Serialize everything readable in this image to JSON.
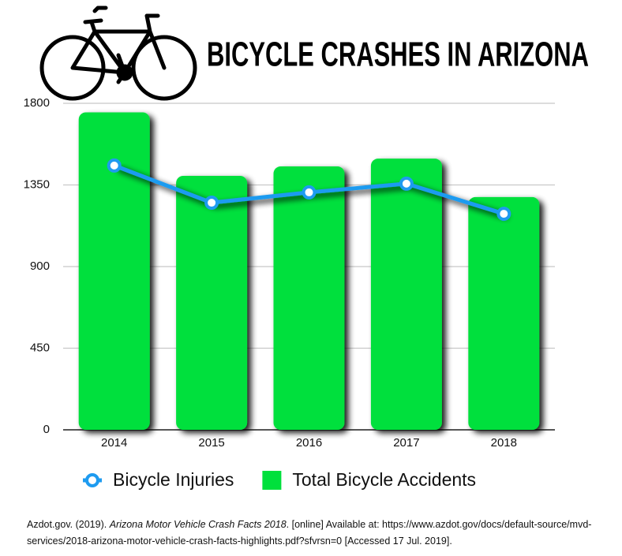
{
  "chart_data": {
    "type": "bar",
    "title": "BICYCLE CRASHES IN ARIZONA",
    "categories": [
      "2014",
      "2015",
      "2016",
      "2017",
      "2018"
    ],
    "series": [
      {
        "name": "Bicycle Injuries",
        "type": "line",
        "color": "#1e9bf0",
        "values": [
          1457,
          1252,
          1309,
          1357,
          1191
        ]
      },
      {
        "name": "Total Bicycle Accidents",
        "type": "bar",
        "color": "#00e03c",
        "values": [
          1750,
          1400,
          1452,
          1495,
          1283
        ]
      }
    ],
    "ylim": [
      0,
      1800
    ],
    "yticks": [
      0,
      450,
      900,
      1350,
      1800
    ],
    "grid": true,
    "citation": {
      "author": "Azdot.gov. (2019).",
      "title": "Arizona Motor Vehicle Crash Facts 2018",
      "rest": ". [online] Available at: https://www.azdot.gov/docs/default-source/mvd-services/2018-arizona-motor-vehicle-crash-facts-highlights.pdf?sfvrsn=0 [Accessed 17 Jul. 2019]."
    }
  }
}
